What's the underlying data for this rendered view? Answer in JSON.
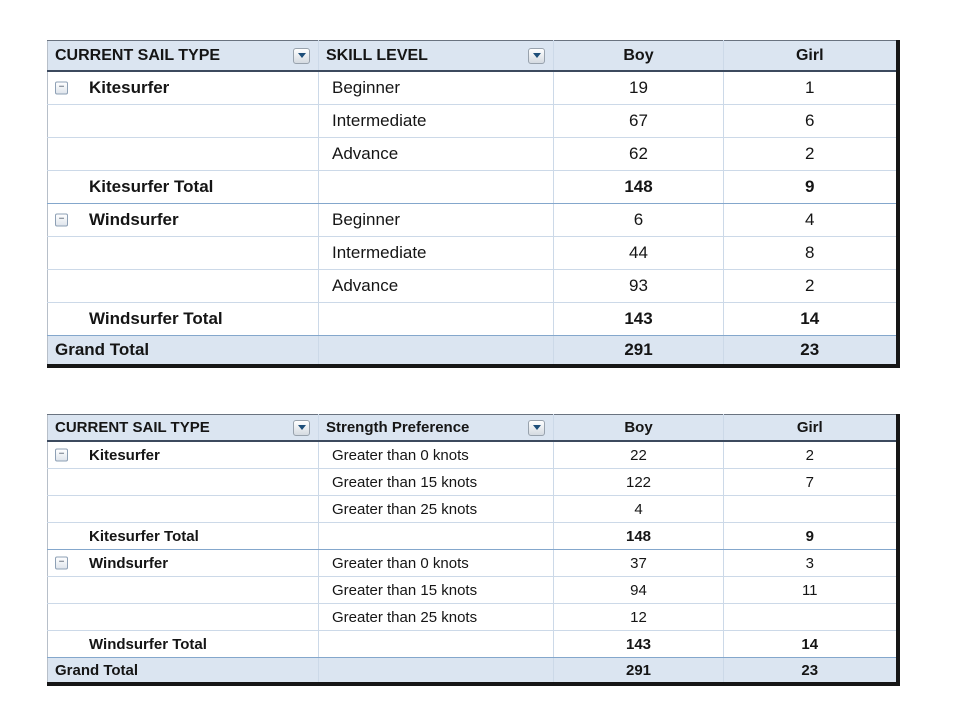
{
  "colors": {
    "header_bg": "#dbe5f1",
    "grand_total_bg": "#dbe5f1",
    "row_separator": "#ccd9e8",
    "total_border": "#84a7cc",
    "header_underline": "#3c4a5e",
    "outer_border": "#161616",
    "dropdown_arrow": "#1e4e79"
  },
  "icons": {
    "collapse_glyph": "−",
    "dropdown_icon": "chevron-down"
  },
  "tables": [
    {
      "name": "skill-level-pivot",
      "columns": [
        {
          "label": "CURRENT SAIL TYPE",
          "dropdown": true,
          "align": "left"
        },
        {
          "label": "SKILL LEVEL",
          "dropdown": true,
          "align": "left"
        },
        {
          "label": "Boy",
          "dropdown": false,
          "align": "center"
        },
        {
          "label": "Girl",
          "dropdown": false,
          "align": "center"
        }
      ],
      "rows": [
        {
          "kind": "detail",
          "group": "Kitesurfer",
          "collapsible": true,
          "label": "Beginner",
          "boy": "19",
          "girl": "1"
        },
        {
          "kind": "detail",
          "group": "",
          "collapsible": false,
          "label": "Intermediate",
          "boy": "67",
          "girl": "6"
        },
        {
          "kind": "detail",
          "group": "",
          "collapsible": false,
          "label": "Advance",
          "boy": "62",
          "girl": "2"
        },
        {
          "kind": "subtotal",
          "group": "Kitesurfer Total",
          "collapsible": false,
          "label": "",
          "boy": "148",
          "girl": "9"
        },
        {
          "kind": "detail",
          "group": "Windsurfer",
          "collapsible": true,
          "label": "Beginner",
          "boy": "6",
          "girl": "4"
        },
        {
          "kind": "detail",
          "group": "",
          "collapsible": false,
          "label": "Intermediate",
          "boy": "44",
          "girl": "8"
        },
        {
          "kind": "detail",
          "group": "",
          "collapsible": false,
          "label": "Advance",
          "boy": "93",
          "girl": "2"
        },
        {
          "kind": "subtotal",
          "group": "Windsurfer Total",
          "collapsible": false,
          "label": "",
          "boy": "143",
          "girl": "14"
        },
        {
          "kind": "grand",
          "group": "Grand Total",
          "collapsible": false,
          "label": "",
          "boy": "291",
          "girl": "23"
        }
      ]
    },
    {
      "name": "strength-preference-pivot",
      "columns": [
        {
          "label": "CURRENT SAIL TYPE",
          "dropdown": true,
          "align": "left"
        },
        {
          "label": "Strength Preference",
          "dropdown": true,
          "align": "left"
        },
        {
          "label": "Boy",
          "dropdown": false,
          "align": "center"
        },
        {
          "label": "Girl",
          "dropdown": false,
          "align": "center"
        }
      ],
      "rows": [
        {
          "kind": "detail",
          "group": "Kitesurfer",
          "collapsible": true,
          "label": "Greater than 0 knots",
          "boy": "22",
          "girl": "2"
        },
        {
          "kind": "detail",
          "group": "",
          "collapsible": false,
          "label": "Greater than 15 knots",
          "boy": "122",
          "girl": "7"
        },
        {
          "kind": "detail",
          "group": "",
          "collapsible": false,
          "label": "Greater than 25 knots",
          "boy": "4",
          "girl": ""
        },
        {
          "kind": "subtotal",
          "group": "Kitesurfer Total",
          "collapsible": false,
          "label": "",
          "boy": "148",
          "girl": "9"
        },
        {
          "kind": "detail",
          "group": "Windsurfer",
          "collapsible": true,
          "label": "Greater than 0 knots",
          "boy": "37",
          "girl": "3"
        },
        {
          "kind": "detail",
          "group": "",
          "collapsible": false,
          "label": "Greater than 15 knots",
          "boy": "94",
          "girl": "11"
        },
        {
          "kind": "detail",
          "group": "",
          "collapsible": false,
          "label": "Greater than 25 knots",
          "boy": "12",
          "girl": ""
        },
        {
          "kind": "subtotal",
          "group": "Windsurfer Total",
          "collapsible": false,
          "label": "",
          "boy": "143",
          "girl": "14"
        },
        {
          "kind": "grand",
          "group": "Grand Total",
          "collapsible": false,
          "label": "",
          "boy": "291",
          "girl": "23"
        }
      ]
    }
  ]
}
